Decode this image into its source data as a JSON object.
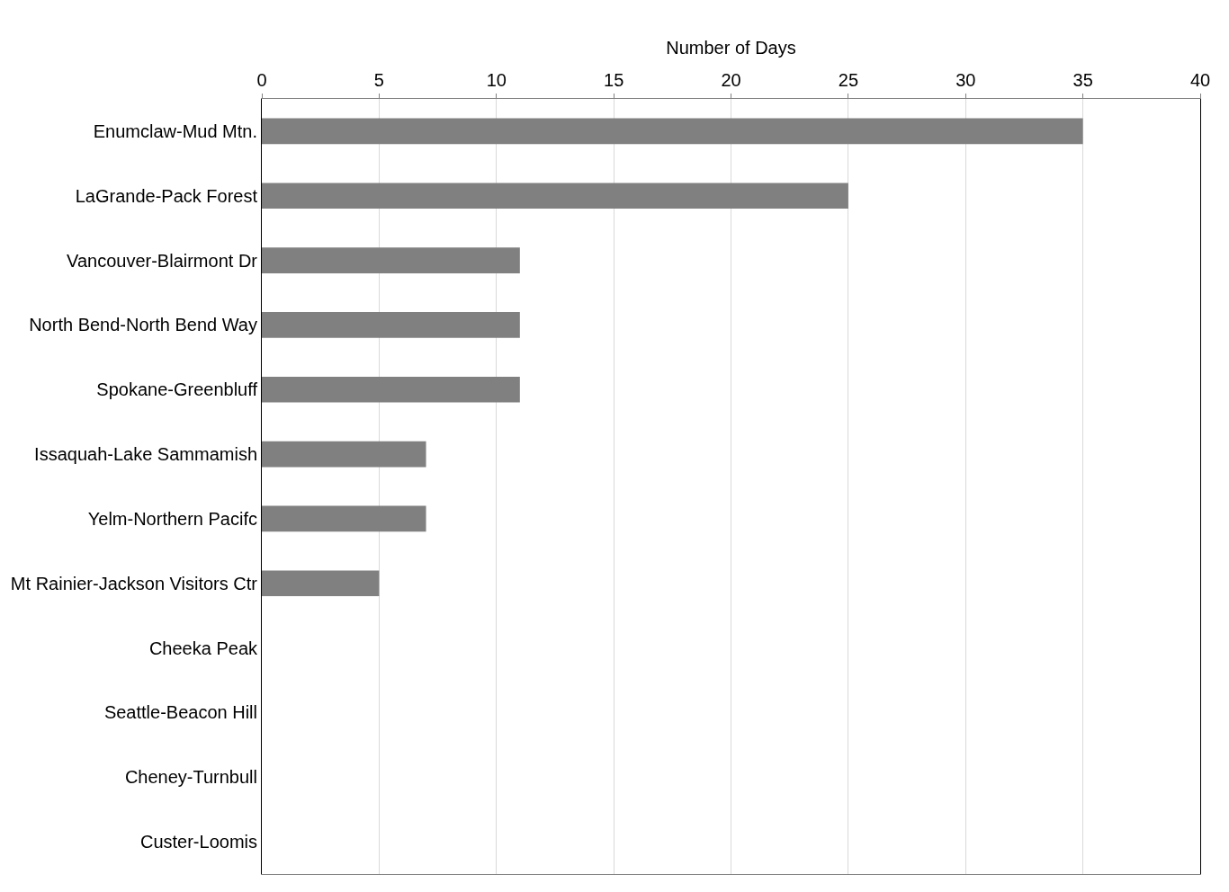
{
  "chart_data": {
    "type": "bar",
    "orientation": "horizontal",
    "xlabel": "Number of Days",
    "categories": [
      "Enumclaw-Mud Mtn.",
      "LaGrande-Pack Forest",
      "Vancouver-Blairmont Dr",
      "North Bend-North Bend Way",
      "Spokane-Greenbluff",
      "Issaquah-Lake Sammamish",
      "Yelm-Northern Pacifc",
      "Mt Rainier-Jackson Visitors Ctr",
      "Cheeka Peak",
      "Seattle-Beacon Hill",
      "Cheney-Turnbull",
      "Custer-Loomis"
    ],
    "values": [
      35,
      25,
      11,
      11,
      11,
      7,
      7,
      5,
      0,
      0,
      0,
      0
    ],
    "color": "#808080",
    "xlim": [
      0,
      40
    ],
    "xticks": [
      0,
      5,
      10,
      15,
      20,
      25,
      30,
      35,
      40
    ],
    "grid": "x"
  }
}
